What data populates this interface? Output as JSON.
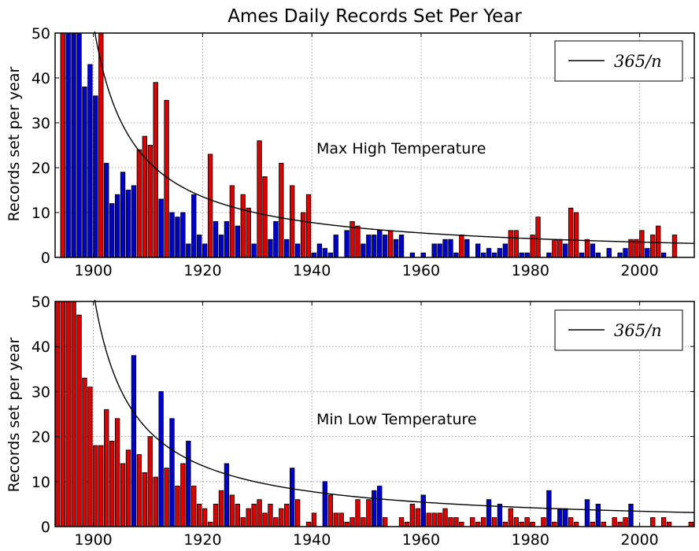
{
  "figure": {
    "title": "Ames Daily Records Set Per Year"
  },
  "chart_data": [
    {
      "type": "bar",
      "title": "Max High Temperature",
      "annotation": "Max High Temperature",
      "xlabel": "",
      "ylabel": "Records set per year",
      "xlim": [
        1893,
        2010
      ],
      "ylim": [
        0,
        50
      ],
      "x_ticks": [
        1900,
        1920,
        1940,
        1960,
        1980,
        2000
      ],
      "y_ticks": [
        0,
        10,
        20,
        30,
        40,
        50
      ],
      "grid": true,
      "legend": {
        "position": "top-right",
        "label": "365/n"
      },
      "curve": {
        "label": "365/n",
        "start_year": 1893,
        "numerator": 365,
        "color": "#000000"
      },
      "colors": {
        "r": "#dd0000",
        "b": "#0000cc",
        "edge": "#000000"
      },
      "bars": [
        {
          "x": 1894,
          "y": 50,
          "c": "r"
        },
        {
          "x": 1895,
          "y": 50,
          "c": "b"
        },
        {
          "x": 1896,
          "y": 50,
          "c": "b"
        },
        {
          "x": 1897,
          "y": 50,
          "c": "b"
        },
        {
          "x": 1898,
          "y": 38,
          "c": "b"
        },
        {
          "x": 1899,
          "y": 43,
          "c": "b"
        },
        {
          "x": 1900,
          "y": 36,
          "c": "b"
        },
        {
          "x": 1901,
          "y": 50,
          "c": "r"
        },
        {
          "x": 1902,
          "y": 21,
          "c": "b"
        },
        {
          "x": 1903,
          "y": 12,
          "c": "b"
        },
        {
          "x": 1904,
          "y": 14,
          "c": "b"
        },
        {
          "x": 1905,
          "y": 19,
          "c": "b"
        },
        {
          "x": 1906,
          "y": 15,
          "c": "b"
        },
        {
          "x": 1907,
          "y": 16,
          "c": "b"
        },
        {
          "x": 1908,
          "y": 24,
          "c": "r"
        },
        {
          "x": 1909,
          "y": 27,
          "c": "r"
        },
        {
          "x": 1910,
          "y": 25,
          "c": "r"
        },
        {
          "x": 1911,
          "y": 39,
          "c": "r"
        },
        {
          "x": 1912,
          "y": 13,
          "c": "b"
        },
        {
          "x": 1913,
          "y": 35,
          "c": "r"
        },
        {
          "x": 1914,
          "y": 10,
          "c": "b"
        },
        {
          "x": 1915,
          "y": 9,
          "c": "b"
        },
        {
          "x": 1916,
          "y": 10,
          "c": "b"
        },
        {
          "x": 1917,
          "y": 3,
          "c": "b"
        },
        {
          "x": 1918,
          "y": 14,
          "c": "b"
        },
        {
          "x": 1919,
          "y": 5,
          "c": "b"
        },
        {
          "x": 1920,
          "y": 3,
          "c": "b"
        },
        {
          "x": 1921,
          "y": 23,
          "c": "r"
        },
        {
          "x": 1922,
          "y": 8,
          "c": "b"
        },
        {
          "x": 1923,
          "y": 5,
          "c": "b"
        },
        {
          "x": 1924,
          "y": 8,
          "c": "b"
        },
        {
          "x": 1925,
          "y": 16,
          "c": "r"
        },
        {
          "x": 1926,
          "y": 7,
          "c": "b"
        },
        {
          "x": 1927,
          "y": 14,
          "c": "r"
        },
        {
          "x": 1928,
          "y": 11,
          "c": "r"
        },
        {
          "x": 1929,
          "y": 3,
          "c": "b"
        },
        {
          "x": 1930,
          "y": 26,
          "c": "r"
        },
        {
          "x": 1931,
          "y": 18,
          "c": "r"
        },
        {
          "x": 1932,
          "y": 4,
          "c": "b"
        },
        {
          "x": 1933,
          "y": 8,
          "c": "b"
        },
        {
          "x": 1934,
          "y": 21,
          "c": "r"
        },
        {
          "x": 1935,
          "y": 4,
          "c": "b"
        },
        {
          "x": 1936,
          "y": 16,
          "c": "r"
        },
        {
          "x": 1937,
          "y": 3,
          "c": "b"
        },
        {
          "x": 1938,
          "y": 10,
          "c": "r"
        },
        {
          "x": 1939,
          "y": 14,
          "c": "r"
        },
        {
          "x": 1940,
          "y": 1,
          "c": "b"
        },
        {
          "x": 1941,
          "y": 3,
          "c": "b"
        },
        {
          "x": 1942,
          "y": 2,
          "c": "b"
        },
        {
          "x": 1943,
          "y": 1,
          "c": "b"
        },
        {
          "x": 1944,
          "y": 5,
          "c": "b"
        },
        {
          "x": 1946,
          "y": 6,
          "c": "b"
        },
        {
          "x": 1947,
          "y": 8,
          "c": "r"
        },
        {
          "x": 1948,
          "y": 7,
          "c": "r"
        },
        {
          "x": 1949,
          "y": 3,
          "c": "b"
        },
        {
          "x": 1950,
          "y": 5,
          "c": "b"
        },
        {
          "x": 1951,
          "y": 5,
          "c": "b"
        },
        {
          "x": 1952,
          "y": 6,
          "c": "b"
        },
        {
          "x": 1953,
          "y": 5,
          "c": "b"
        },
        {
          "x": 1954,
          "y": 6,
          "c": "r"
        },
        {
          "x": 1955,
          "y": 4,
          "c": "b"
        },
        {
          "x": 1956,
          "y": 5,
          "c": "b"
        },
        {
          "x": 1958,
          "y": 1,
          "c": "b"
        },
        {
          "x": 1960,
          "y": 1,
          "c": "b"
        },
        {
          "x": 1962,
          "y": 3,
          "c": "b"
        },
        {
          "x": 1963,
          "y": 3,
          "c": "b"
        },
        {
          "x": 1964,
          "y": 4,
          "c": "b"
        },
        {
          "x": 1965,
          "y": 4,
          "c": "b"
        },
        {
          "x": 1966,
          "y": 1,
          "c": "b"
        },
        {
          "x": 1967,
          "y": 5,
          "c": "r"
        },
        {
          "x": 1968,
          "y": 4,
          "c": "b"
        },
        {
          "x": 1970,
          "y": 3,
          "c": "b"
        },
        {
          "x": 1971,
          "y": 1,
          "c": "b"
        },
        {
          "x": 1972,
          "y": 2,
          "c": "b"
        },
        {
          "x": 1973,
          "y": 1,
          "c": "b"
        },
        {
          "x": 1974,
          "y": 2,
          "c": "b"
        },
        {
          "x": 1975,
          "y": 3,
          "c": "b"
        },
        {
          "x": 1976,
          "y": 6,
          "c": "r"
        },
        {
          "x": 1977,
          "y": 6,
          "c": "r"
        },
        {
          "x": 1978,
          "y": 1,
          "c": "b"
        },
        {
          "x": 1979,
          "y": 1,
          "c": "b"
        },
        {
          "x": 1980,
          "y": 5,
          "c": "r"
        },
        {
          "x": 1981,
          "y": 9,
          "c": "r"
        },
        {
          "x": 1983,
          "y": 1,
          "c": "b"
        },
        {
          "x": 1984,
          "y": 4,
          "c": "r"
        },
        {
          "x": 1985,
          "y": 4,
          "c": "r"
        },
        {
          "x": 1986,
          "y": 3,
          "c": "b"
        },
        {
          "x": 1987,
          "y": 11,
          "c": "r"
        },
        {
          "x": 1988,
          "y": 10,
          "c": "r"
        },
        {
          "x": 1989,
          "y": 1,
          "c": "b"
        },
        {
          "x": 1990,
          "y": 4,
          "c": "r"
        },
        {
          "x": 1991,
          "y": 3,
          "c": "b"
        },
        {
          "x": 1992,
          "y": 1,
          "c": "b"
        },
        {
          "x": 1994,
          "y": 2,
          "c": "b"
        },
        {
          "x": 1996,
          "y": 1,
          "c": "b"
        },
        {
          "x": 1997,
          "y": 2,
          "c": "b"
        },
        {
          "x": 1998,
          "y": 4,
          "c": "r"
        },
        {
          "x": 1999,
          "y": 4,
          "c": "r"
        },
        {
          "x": 2000,
          "y": 6,
          "c": "r"
        },
        {
          "x": 2001,
          "y": 2,
          "c": "b"
        },
        {
          "x": 2002,
          "y": 5,
          "c": "r"
        },
        {
          "x": 2003,
          "y": 7,
          "c": "r"
        },
        {
          "x": 2004,
          "y": 1,
          "c": "b"
        },
        {
          "x": 2006,
          "y": 5,
          "c": "r"
        }
      ]
    },
    {
      "type": "bar",
      "title": "Min Low Temperature",
      "annotation": "Min Low Temperature",
      "xlabel": "",
      "ylabel": "Records set per year",
      "xlim": [
        1893,
        2010
      ],
      "ylim": [
        0,
        50
      ],
      "x_ticks": [
        1900,
        1920,
        1940,
        1960,
        1980,
        2000
      ],
      "y_ticks": [
        0,
        10,
        20,
        30,
        40,
        50
      ],
      "grid": true,
      "legend": {
        "position": "top-right",
        "label": "365/n"
      },
      "curve": {
        "label": "365/n",
        "start_year": 1893,
        "numerator": 365,
        "color": "#000000"
      },
      "colors": {
        "r": "#dd0000",
        "b": "#0000cc",
        "edge": "#000000"
      },
      "bars": [
        {
          "x": 1893,
          "y": 50,
          "c": "r"
        },
        {
          "x": 1894,
          "y": 50,
          "c": "r"
        },
        {
          "x": 1895,
          "y": 50,
          "c": "r"
        },
        {
          "x": 1896,
          "y": 50,
          "c": "r"
        },
        {
          "x": 1897,
          "y": 47,
          "c": "r"
        },
        {
          "x": 1898,
          "y": 33,
          "c": "r"
        },
        {
          "x": 1899,
          "y": 31,
          "c": "r"
        },
        {
          "x": 1900,
          "y": 18,
          "c": "r"
        },
        {
          "x": 1901,
          "y": 18,
          "c": "r"
        },
        {
          "x": 1902,
          "y": 26,
          "c": "r"
        },
        {
          "x": 1903,
          "y": 19,
          "c": "r"
        },
        {
          "x": 1904,
          "y": 24,
          "c": "r"
        },
        {
          "x": 1905,
          "y": 14,
          "c": "r"
        },
        {
          "x": 1906,
          "y": 17,
          "c": "r"
        },
        {
          "x": 1907,
          "y": 38,
          "c": "b"
        },
        {
          "x": 1908,
          "y": 16,
          "c": "r"
        },
        {
          "x": 1909,
          "y": 12,
          "c": "r"
        },
        {
          "x": 1910,
          "y": 20,
          "c": "r"
        },
        {
          "x": 1911,
          "y": 11,
          "c": "r"
        },
        {
          "x": 1912,
          "y": 30,
          "c": "b"
        },
        {
          "x": 1913,
          "y": 13,
          "c": "r"
        },
        {
          "x": 1914,
          "y": 24,
          "c": "b"
        },
        {
          "x": 1915,
          "y": 9,
          "c": "r"
        },
        {
          "x": 1916,
          "y": 14,
          "c": "r"
        },
        {
          "x": 1917,
          "y": 19,
          "c": "b"
        },
        {
          "x": 1918,
          "y": 9,
          "c": "r"
        },
        {
          "x": 1919,
          "y": 5,
          "c": "r"
        },
        {
          "x": 1920,
          "y": 4,
          "c": "r"
        },
        {
          "x": 1921,
          "y": 1,
          "c": "r"
        },
        {
          "x": 1922,
          "y": 5,
          "c": "r"
        },
        {
          "x": 1923,
          "y": 8,
          "c": "r"
        },
        {
          "x": 1924,
          "y": 14,
          "c": "b"
        },
        {
          "x": 1925,
          "y": 7,
          "c": "r"
        },
        {
          "x": 1926,
          "y": 5,
          "c": "r"
        },
        {
          "x": 1927,
          "y": 2,
          "c": "r"
        },
        {
          "x": 1928,
          "y": 4,
          "c": "r"
        },
        {
          "x": 1929,
          "y": 5,
          "c": "r"
        },
        {
          "x": 1930,
          "y": 6,
          "c": "r"
        },
        {
          "x": 1931,
          "y": 3,
          "c": "r"
        },
        {
          "x": 1932,
          "y": 5,
          "c": "r"
        },
        {
          "x": 1933,
          "y": 2,
          "c": "r"
        },
        {
          "x": 1934,
          "y": 4,
          "c": "r"
        },
        {
          "x": 1935,
          "y": 5,
          "c": "r"
        },
        {
          "x": 1936,
          "y": 13,
          "c": "b"
        },
        {
          "x": 1937,
          "y": 6,
          "c": "r"
        },
        {
          "x": 1939,
          "y": 1,
          "c": "r"
        },
        {
          "x": 1940,
          "y": 3,
          "c": "r"
        },
        {
          "x": 1942,
          "y": 10,
          "c": "b"
        },
        {
          "x": 1943,
          "y": 7,
          "c": "r"
        },
        {
          "x": 1944,
          "y": 3,
          "c": "r"
        },
        {
          "x": 1945,
          "y": 3,
          "c": "r"
        },
        {
          "x": 1946,
          "y": 1,
          "c": "r"
        },
        {
          "x": 1947,
          "y": 2,
          "c": "r"
        },
        {
          "x": 1948,
          "y": 6,
          "c": "r"
        },
        {
          "x": 1949,
          "y": 2,
          "c": "r"
        },
        {
          "x": 1950,
          "y": 6,
          "c": "r"
        },
        {
          "x": 1951,
          "y": 8,
          "c": "b"
        },
        {
          "x": 1952,
          "y": 9,
          "c": "b"
        },
        {
          "x": 1953,
          "y": 2,
          "c": "r"
        },
        {
          "x": 1956,
          "y": 2,
          "c": "r"
        },
        {
          "x": 1957,
          "y": 1,
          "c": "r"
        },
        {
          "x": 1958,
          "y": 5,
          "c": "r"
        },
        {
          "x": 1959,
          "y": 4,
          "c": "r"
        },
        {
          "x": 1960,
          "y": 7,
          "c": "b"
        },
        {
          "x": 1961,
          "y": 3,
          "c": "r"
        },
        {
          "x": 1962,
          "y": 3,
          "c": "r"
        },
        {
          "x": 1963,
          "y": 3,
          "c": "r"
        },
        {
          "x": 1964,
          "y": 4,
          "c": "r"
        },
        {
          "x": 1965,
          "y": 2,
          "c": "r"
        },
        {
          "x": 1966,
          "y": 2,
          "c": "r"
        },
        {
          "x": 1967,
          "y": 1,
          "c": "r"
        },
        {
          "x": 1969,
          "y": 2,
          "c": "r"
        },
        {
          "x": 1970,
          "y": 1,
          "c": "r"
        },
        {
          "x": 1971,
          "y": 2,
          "c": "r"
        },
        {
          "x": 1972,
          "y": 6,
          "c": "b"
        },
        {
          "x": 1973,
          "y": 2,
          "c": "r"
        },
        {
          "x": 1974,
          "y": 5,
          "c": "b"
        },
        {
          "x": 1975,
          "y": 1,
          "c": "r"
        },
        {
          "x": 1976,
          "y": 4,
          "c": "r"
        },
        {
          "x": 1977,
          "y": 2,
          "c": "r"
        },
        {
          "x": 1978,
          "y": 1,
          "c": "r"
        },
        {
          "x": 1979,
          "y": 2,
          "c": "r"
        },
        {
          "x": 1980,
          "y": 1,
          "c": "r"
        },
        {
          "x": 1982,
          "y": 2,
          "c": "r"
        },
        {
          "x": 1983,
          "y": 8,
          "c": "b"
        },
        {
          "x": 1984,
          "y": 1,
          "c": "r"
        },
        {
          "x": 1985,
          "y": 4,
          "c": "b"
        },
        {
          "x": 1986,
          "y": 4,
          "c": "b"
        },
        {
          "x": 1987,
          "y": 2,
          "c": "r"
        },
        {
          "x": 1988,
          "y": 1,
          "c": "r"
        },
        {
          "x": 1990,
          "y": 6,
          "c": "b"
        },
        {
          "x": 1991,
          "y": 1,
          "c": "r"
        },
        {
          "x": 1992,
          "y": 5,
          "c": "b"
        },
        {
          "x": 1993,
          "y": 1,
          "c": "r"
        },
        {
          "x": 1995,
          "y": 2,
          "c": "r"
        },
        {
          "x": 1996,
          "y": 1,
          "c": "r"
        },
        {
          "x": 1997,
          "y": 2,
          "c": "r"
        },
        {
          "x": 1998,
          "y": 5,
          "c": "b"
        },
        {
          "x": 2002,
          "y": 2,
          "c": "r"
        },
        {
          "x": 2004,
          "y": 2,
          "c": "r"
        },
        {
          "x": 2005,
          "y": 1,
          "c": "r"
        },
        {
          "x": 2009,
          "y": 1,
          "c": "r"
        }
      ]
    }
  ]
}
